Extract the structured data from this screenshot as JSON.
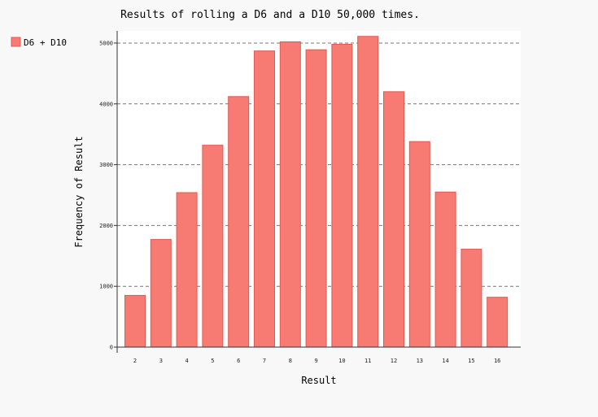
{
  "chart_data": {
    "type": "bar",
    "title": "Results of rolling a D6 and a D10 50,000 times.",
    "xlabel": "Result",
    "ylabel": "Frequency of Result",
    "categories": [
      "2",
      "3",
      "4",
      "5",
      "6",
      "7",
      "8",
      "9",
      "10",
      "11",
      "12",
      "13",
      "14",
      "15",
      "16"
    ],
    "series": [
      {
        "name": "D6 + D10",
        "values": [
          850,
          1770,
          2540,
          3320,
          4120,
          4870,
          5020,
          4890,
          4980,
          5110,
          4200,
          3380,
          2550,
          1610,
          820
        ]
      }
    ],
    "ylim": [
      0,
      5200
    ],
    "yticks": [
      0,
      1000,
      2000,
      3000,
      4000,
      5000
    ],
    "grid": true,
    "legend_position": "top-left",
    "colors": {
      "bar_fill": "#f77b72",
      "bar_stroke": "#e05a52",
      "grid": "#777777",
      "axis": "#333333",
      "plot_background": "#ffffff",
      "page_background": "#f8f8f8"
    }
  }
}
